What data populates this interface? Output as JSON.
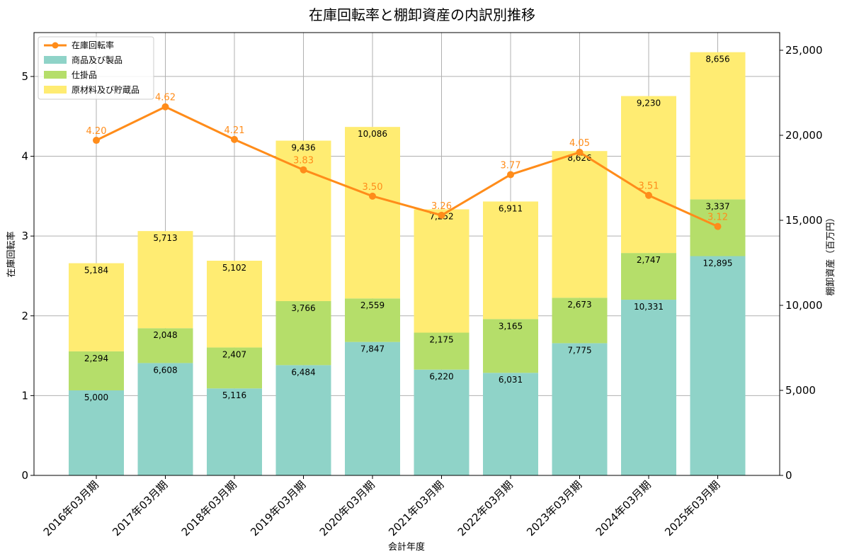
{
  "chart_data": {
    "type": "bar",
    "stacked": true,
    "title": "在庫回転率と棚卸資産の内訳別推移",
    "xlabel": "会計年度",
    "ylabel_left": "在庫回転率",
    "ylabel_right": "棚卸資産（百万円）",
    "categories": [
      "2016年03月期",
      "2017年03月期",
      "2018年03月期",
      "2019年03月期",
      "2020年03月期",
      "2021年03月期",
      "2022年03月期",
      "2023年03月期",
      "2024年03月期",
      "2025年03月期"
    ],
    "series": [
      {
        "name": "商品及び製品",
        "color": "#8fd3c8",
        "axis": "right",
        "values": [
          5000,
          6608,
          5116,
          6484,
          7847,
          6220,
          6031,
          7775,
          10331,
          12895
        ],
        "labels": [
          "5,000",
          "6,608",
          "5,116",
          "6,484",
          "7,847",
          "6,220",
          "6,031",
          "7,775",
          "10,331",
          "12,895"
        ]
      },
      {
        "name": "仕掛品",
        "color": "#b5de6a",
        "axis": "right",
        "values": [
          2294,
          2048,
          2407,
          3766,
          2559,
          2175,
          3165,
          2673,
          2747,
          3337
        ],
        "labels": [
          "2,294",
          "2,048",
          "2,407",
          "3,766",
          "2,559",
          "2,175",
          "3,165",
          "2,673",
          "2,747",
          "3,337"
        ]
      },
      {
        "name": "原材料及び貯蔵品",
        "color": "#ffec72",
        "axis": "right",
        "values": [
          5184,
          5713,
          5102,
          9436,
          10086,
          7252,
          6911,
          8626,
          9230,
          8656
        ],
        "labels": [
          "5,184",
          "5,713",
          "5,102",
          "9,436",
          "10,086",
          "7,252",
          "6,911",
          "8,626",
          "9,230",
          "8,656"
        ]
      }
    ],
    "line": {
      "name": "在庫回転率",
      "color": "#ff8c1a",
      "axis": "left",
      "values": [
        4.2,
        4.62,
        4.21,
        3.83,
        3.5,
        3.26,
        3.77,
        4.05,
        3.51,
        3.12
      ],
      "labels": [
        "4.20",
        "4.62",
        "4.21",
        "3.83",
        "3.50",
        "3.26",
        "3.77",
        "4.05",
        "3.51",
        "3.12"
      ]
    },
    "yleft": {
      "range": [
        0,
        5.55
      ],
      "ticks": [
        0,
        1,
        2,
        3,
        4,
        5
      ],
      "tick_labels": [
        "0",
        "1",
        "2",
        "3",
        "4",
        "5"
      ]
    },
    "yright": {
      "range": [
        0,
        26040
      ],
      "ticks": [
        0,
        5000,
        10000,
        15000,
        20000,
        25000
      ],
      "tick_labels": [
        "0",
        "5,000",
        "10,000",
        "15,000",
        "20,000",
        "25,000"
      ]
    },
    "grid": true,
    "legend_position": "top-left"
  }
}
